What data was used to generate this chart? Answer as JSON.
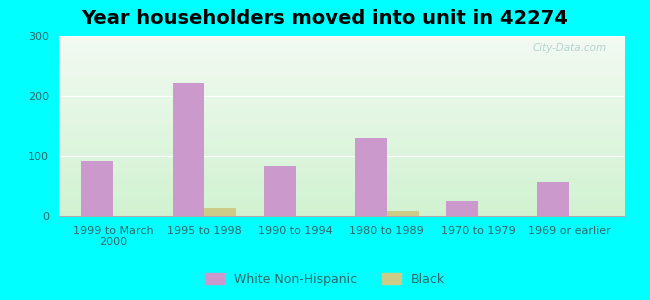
{
  "title": "Year householders moved into unit in 42274",
  "categories": [
    "1999 to March\n2000",
    "1995 to 1998",
    "1990 to 1994",
    "1980 to 1989",
    "1970 to 1979",
    "1969 or earlier"
  ],
  "white_values": [
    92,
    222,
    84,
    130,
    25,
    57
  ],
  "black_values": [
    0,
    14,
    0,
    9,
    0,
    0
  ],
  "white_color": "#cc99cc",
  "black_color": "#cccc88",
  "ylim": [
    0,
    300
  ],
  "yticks": [
    0,
    100,
    200,
    300
  ],
  "background_color": "#00ffff",
  "bar_width": 0.35,
  "title_fontsize": 14,
  "tick_fontsize": 8,
  "legend_fontsize": 9,
  "tick_color": "#336666",
  "grid_color": "#ffffff",
  "watermark": "City-Data.com"
}
